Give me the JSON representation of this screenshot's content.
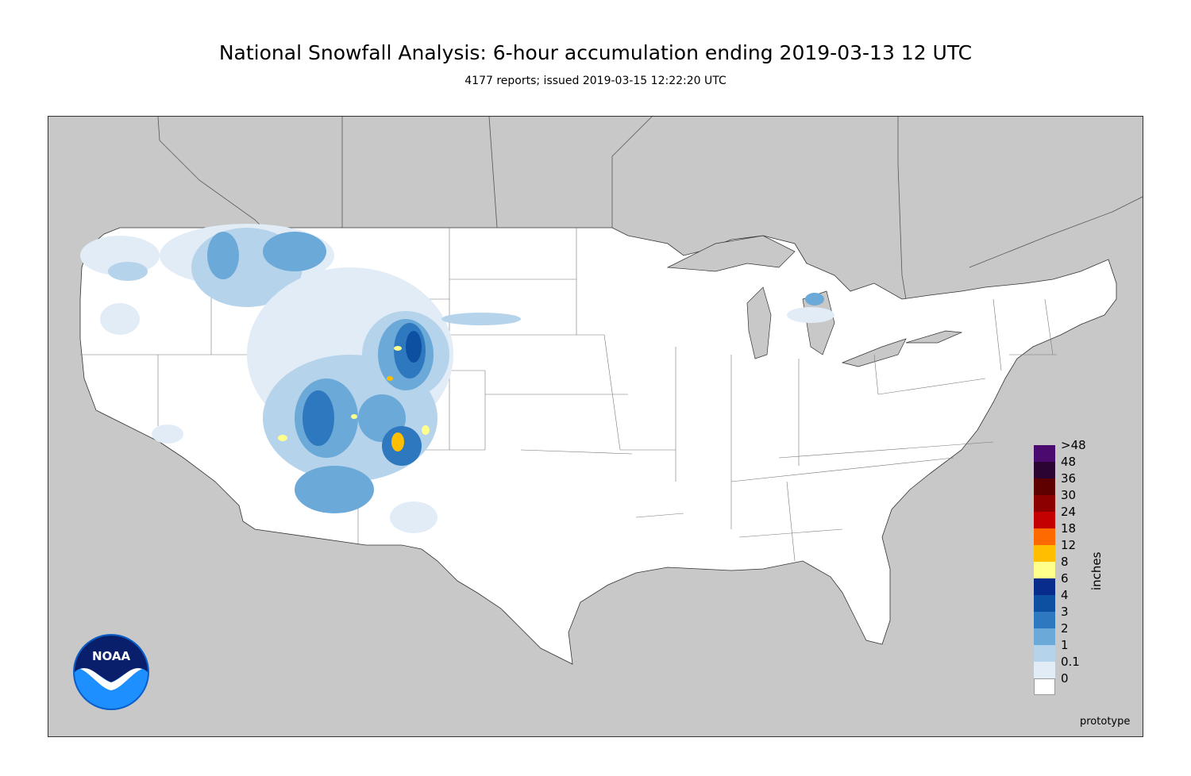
{
  "title": "National Snowfall Analysis: 6-hour accumulation ending 2019-03-13 12 UTC",
  "subtitle": "4177 reports; issued 2019-03-15 12:22:20 UTC",
  "footer_note": "prototype",
  "logo_text": "NOAA",
  "legend": {
    "units": "inches",
    "levels": [
      {
        "label": ">48",
        "color": "#4a0a6e"
      },
      {
        "label": "48",
        "color": "#2b0433"
      },
      {
        "label": "36",
        "color": "#5e0000"
      },
      {
        "label": "30",
        "color": "#8c0000"
      },
      {
        "label": "24",
        "color": "#c40000"
      },
      {
        "label": "18",
        "color": "#ff6a00"
      },
      {
        "label": "12",
        "color": "#ffbf00"
      },
      {
        "label": "8",
        "color": "#ffff8c"
      },
      {
        "label": "6",
        "color": "#082c8c"
      },
      {
        "label": "4",
        "color": "#0d4fa0"
      },
      {
        "label": "3",
        "color": "#2e78bf"
      },
      {
        "label": "2",
        "color": "#6aa9d8"
      },
      {
        "label": "1",
        "color": "#b5d3ea"
      },
      {
        "label": "0.1",
        "color": "#e1ecf6"
      },
      {
        "label": "0",
        "color": "#ffffff"
      }
    ]
  },
  "colors": {
    "ocean_land_outside": "#c8c8c8",
    "conus_fill": "#ffffff",
    "border": "#333333"
  }
}
